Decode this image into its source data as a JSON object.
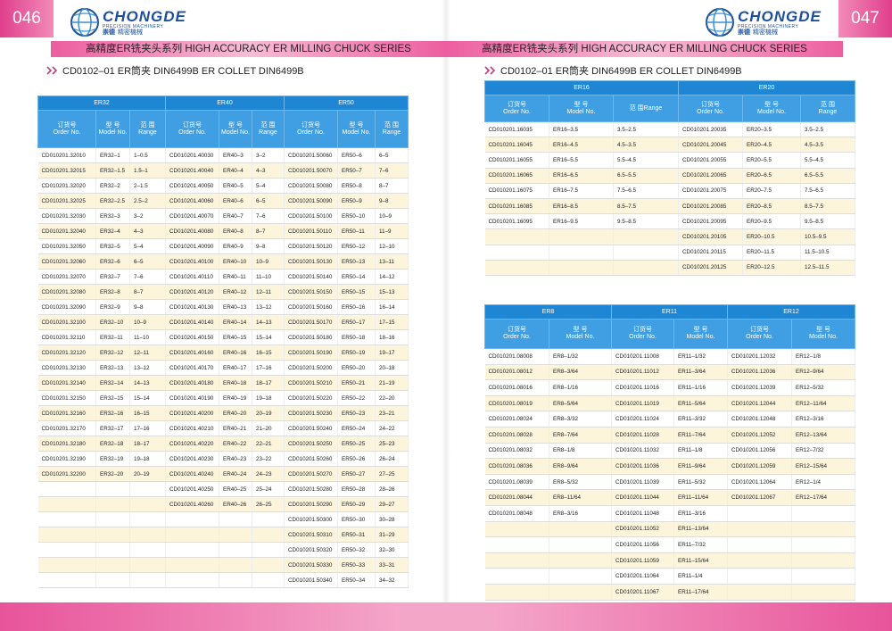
{
  "pages": [
    {
      "number": "046",
      "logo": {
        "brand": "CHONGDE",
        "tagline": "PRECISION MACHINERY",
        "cn": "崇德",
        "cn_sub": "精密機械"
      },
      "title": "高精度ER铣夹头系列  HIGH ACCURACY ER MILLING CHUCK SERIES",
      "subtitle": "CD0102–01 ER筒夹  DIN6499B ER COLLET DIN6499B",
      "tables": [
        {
          "groups": [
            {
              "name": "ER32",
              "headers": [
                [
                  "订货号",
                  "Order No."
                ],
                [
                  "型 号",
                  "Model No."
                ],
                [
                  "范 围",
                  "Range"
                ]
              ],
              "rows": [
                [
                  "CD010201.32010",
                  "ER32–1",
                  "1–0.5"
                ],
                [
                  "CD010201.32015",
                  "ER32–1.5",
                  "1.5–1"
                ],
                [
                  "CD010201.32020",
                  "ER32–2",
                  "2–1.5"
                ],
                [
                  "CD010201.32025",
                  "ER32–2.5",
                  "2.5–2"
                ],
                [
                  "CD010201.32030",
                  "ER32–3",
                  "3–2"
                ],
                [
                  "CD010201.32040",
                  "ER32–4",
                  "4–3"
                ],
                [
                  "CD010201.32050",
                  "ER32–5",
                  "5–4"
                ],
                [
                  "CD010201.32060",
                  "ER32–6",
                  "6–5"
                ],
                [
                  "CD010201.32070",
                  "ER32–7",
                  "7–6"
                ],
                [
                  "CD010201.32080",
                  "ER32–8",
                  "8–7"
                ],
                [
                  "CD010201.32090",
                  "ER32–9",
                  "9–8"
                ],
                [
                  "CD010201.32100",
                  "ER32–10",
                  "10–9"
                ],
                [
                  "CD010201.32110",
                  "ER32–11",
                  "11–10"
                ],
                [
                  "CD010201.32120",
                  "ER32–12",
                  "12–11"
                ],
                [
                  "CD010201.32130",
                  "ER32–13",
                  "13–12"
                ],
                [
                  "CD010201.32140",
                  "ER32–14",
                  "14–13"
                ],
                [
                  "CD010201.32150",
                  "ER32–15",
                  "15–14"
                ],
                [
                  "CD010201.32160",
                  "ER32–16",
                  "16–15"
                ],
                [
                  "CD010201.32170",
                  "ER32–17",
                  "17–16"
                ],
                [
                  "CD010201.32180",
                  "ER32–18",
                  "18–17"
                ],
                [
                  "CD010201.32190",
                  "ER32–19",
                  "19–18"
                ],
                [
                  "CD010201.32200",
                  "ER32–20",
                  "20–19"
                ]
              ]
            },
            {
              "name": "ER40",
              "headers": [
                [
                  "订货号",
                  "Order No."
                ],
                [
                  "型 号",
                  "Model No."
                ],
                [
                  "范 围",
                  "Range"
                ]
              ],
              "rows": [
                [
                  "CD010201.40030",
                  "ER40–3",
                  "3–2"
                ],
                [
                  "CD010201.40040",
                  "ER40–4",
                  "4–3"
                ],
                [
                  "CD010201.40050",
                  "ER40–5",
                  "5–4"
                ],
                [
                  "CD010201.40060",
                  "ER40–6",
                  "6–5"
                ],
                [
                  "CD010201.40070",
                  "ER40–7",
                  "7–6"
                ],
                [
                  "CD010201.40080",
                  "ER40–8",
                  "8–7"
                ],
                [
                  "CD010201.40090",
                  "ER40–9",
                  "9–8"
                ],
                [
                  "CD010201.40100",
                  "ER40–10",
                  "10–9"
                ],
                [
                  "CD010201.40110",
                  "ER40–11",
                  "11–10"
                ],
                [
                  "CD010201.40120",
                  "ER40–12",
                  "12–11"
                ],
                [
                  "CD010201.40130",
                  "ER40–13",
                  "13–12"
                ],
                [
                  "CD010201.40140",
                  "ER40–14",
                  "14–13"
                ],
                [
                  "CD010201.40150",
                  "ER40–15",
                  "15–14"
                ],
                [
                  "CD010201.40160",
                  "ER40–16",
                  "16–15"
                ],
                [
                  "CD010201.40170",
                  "ER40–17",
                  "17–16"
                ],
                [
                  "CD010201.40180",
                  "ER40–18",
                  "18–17"
                ],
                [
                  "CD010201.40190",
                  "ER40–19",
                  "19–18"
                ],
                [
                  "CD010201.40200",
                  "ER40–20",
                  "20–19"
                ],
                [
                  "CD010201.40210",
                  "ER40–21",
                  "21–20"
                ],
                [
                  "CD010201.40220",
                  "ER40–22",
                  "22–21"
                ],
                [
                  "CD010201.40230",
                  "ER40–23",
                  "23–22"
                ],
                [
                  "CD010201.40240",
                  "ER40–24",
                  "24–23"
                ],
                [
                  "CD010201.40250",
                  "ER40–25",
                  "25–24"
                ],
                [
                  "CD010201.40260",
                  "ER40–26",
                  "26–25"
                ]
              ]
            },
            {
              "name": "ER50",
              "headers": [
                [
                  "订货号",
                  "Order No."
                ],
                [
                  "型 号",
                  "Model No."
                ],
                [
                  "范 围",
                  "Range"
                ]
              ],
              "rows": [
                [
                  "CD010201.50060",
                  "ER50–6",
                  "6–5"
                ],
                [
                  "CD010201.50070",
                  "ER50–7",
                  "7–6"
                ],
                [
                  "CD010201.50080",
                  "ER50–8",
                  "8–7"
                ],
                [
                  "CD010201.50090",
                  "ER50–9",
                  "9–8"
                ],
                [
                  "CD010201.50100",
                  "ER50–10",
                  "10–9"
                ],
                [
                  "CD010201.50110",
                  "ER50–11",
                  "11–9"
                ],
                [
                  "CD010201.50120",
                  "ER50–12",
                  "12–10"
                ],
                [
                  "CD010201.50130",
                  "ER50–13",
                  "13–11"
                ],
                [
                  "CD010201.50140",
                  "ER50–14",
                  "14–12"
                ],
                [
                  "CD010201.50150",
                  "ER50–15",
                  "15–13"
                ],
                [
                  "CD010201.50160",
                  "ER50–16",
                  "16–14"
                ],
                [
                  "CD010201.50170",
                  "ER50–17",
                  "17–15"
                ],
                [
                  "CD010201.50180",
                  "ER50–18",
                  "18–16"
                ],
                [
                  "CD010201.50190",
                  "ER50–19",
                  "19–17"
                ],
                [
                  "CD010201.50200",
                  "ER50–20",
                  "20–18"
                ],
                [
                  "CD010201.50210",
                  "ER50–21",
                  "21–19"
                ],
                [
                  "CD010201.50220",
                  "ER50–22",
                  "22–20"
                ],
                [
                  "CD010201.50230",
                  "ER50–23",
                  "23–21"
                ],
                [
                  "CD010201.50240",
                  "ER50–24",
                  "24–22"
                ],
                [
                  "CD010201.50250",
                  "ER50–25",
                  "25–23"
                ],
                [
                  "CD010201.50260",
                  "ER50–26",
                  "26–24"
                ],
                [
                  "CD010201.50270",
                  "ER50–27",
                  "27–25"
                ],
                [
                  "CD010201.50280",
                  "ER50–28",
                  "28–26"
                ],
                [
                  "CD010201.50290",
                  "ER50–29",
                  "29–27"
                ],
                [
                  "CD010201.50300",
                  "ER50–30",
                  "30–28"
                ],
                [
                  "CD010201.50310",
                  "ER50–31",
                  "31–29"
                ],
                [
                  "CD010201.50320",
                  "ER50–32",
                  "32–30"
                ],
                [
                  "CD010201.50330",
                  "ER50–33",
                  "33–31"
                ],
                [
                  "CD010201.50340",
                  "ER50–34",
                  "34–32"
                ]
              ]
            }
          ]
        }
      ]
    },
    {
      "number": "047",
      "logo": {
        "brand": "CHONGDE",
        "tagline": "PRECISION MACHINERY",
        "cn": "崇德",
        "cn_sub": "精密機械"
      },
      "title": "高精度ER铣夹头系列  HIGH ACCURACY ER MILLING CHUCK SERIES",
      "subtitle": "CD0102–01 ER筒夹  DIN6499B ER COLLET DIN6499B",
      "tables": [
        {
          "groups": [
            {
              "name": "ER16",
              "headers": [
                [
                  "订货号",
                  "Order No."
                ],
                [
                  "型 号",
                  "Model No."
                ],
                [
                  "范 围Range"
                ]
              ],
              "rows": [
                [
                  "CD010201.16035",
                  "ER16–3.5",
                  "3.5–2.5"
                ],
                [
                  "CD010201.16045",
                  "ER16–4.5",
                  "4.5–3.5"
                ],
                [
                  "CD010201.16055",
                  "ER16–5.5",
                  "5.5–4.5"
                ],
                [
                  "CD010201.16065",
                  "ER16–6.5",
                  "6.5–5.5"
                ],
                [
                  "CD010201.16075",
                  "ER16–7.5",
                  "7.5–6.5"
                ],
                [
                  "CD010201.16085",
                  "ER16–8.5",
                  "8.5–7.5"
                ],
                [
                  "CD010201.16095",
                  "ER16–9.5",
                  "9.5–8.5"
                ]
              ]
            },
            {
              "name": "ER20",
              "headers": [
                [
                  "订货号",
                  "Order No."
                ],
                [
                  "型 号",
                  "Model No."
                ],
                [
                  "范 围",
                  "Range"
                ]
              ],
              "rows": [
                [
                  "CD010201.20035",
                  "ER20–3.5",
                  "3.5–2.5"
                ],
                [
                  "CD010201.20045",
                  "ER20–4.5",
                  "4.5–3.5"
                ],
                [
                  "CD010201.20055",
                  "ER20–5.5",
                  "5.5–4.5"
                ],
                [
                  "CD010201.20065",
                  "ER20–6.5",
                  "6.5–5.5"
                ],
                [
                  "CD010201.20075",
                  "ER20–7.5",
                  "7.5–6.5"
                ],
                [
                  "CD010201.20085",
                  "ER20–8.5",
                  "8.5–7.5"
                ],
                [
                  "CD010201.20095",
                  "ER20–9.5",
                  "9.5–8.5"
                ],
                [
                  "CD010201.20105",
                  "ER20–10.5",
                  "10.5–9.5"
                ],
                [
                  "CD010201.20115",
                  "ER20–11.5",
                  "11.5–10.5"
                ],
                [
                  "CD010201.20125",
                  "ER20–12.5",
                  "12.5–11.5"
                ]
              ]
            }
          ]
        },
        {
          "groups": [
            {
              "name": "ER8",
              "headers": [
                [
                  "订货号",
                  "Order No."
                ],
                [
                  "型 号",
                  "Model  No."
                ]
              ],
              "rows": [
                [
                  "CD010201.08008",
                  "ER8–1/32"
                ],
                [
                  "CD010201.08012",
                  "ER8–3/64"
                ],
                [
                  "CD010201.08016",
                  "ER8–1/16"
                ],
                [
                  "CD010201.08019",
                  "ER8–5/64"
                ],
                [
                  "CD010201.08024",
                  "ER8–3/32"
                ],
                [
                  "CD010201.08028",
                  "ER8–7/64"
                ],
                [
                  "CD010201.08032",
                  "ER8–1/8"
                ],
                [
                  "CD010201.08036",
                  "ER8–9/64"
                ],
                [
                  "CD010201.08039",
                  "ER8–5/32"
                ],
                [
                  "CD010201.08044",
                  "ER8–11/64"
                ],
                [
                  "CD010201.08048",
                  "ER8–3/16"
                ]
              ]
            },
            {
              "name": "ER11",
              "headers": [
                [
                  "订货号",
                  "Order No."
                ],
                [
                  "型 号",
                  "Model  No."
                ]
              ],
              "rows": [
                [
                  "CD010201.11008",
                  "ER11–1/32"
                ],
                [
                  "CD010201.11012",
                  "ER11–3/64"
                ],
                [
                  "CD010201.11016",
                  "ER11–1/16"
                ],
                [
                  "CD010201.11019",
                  "ER11–5/64"
                ],
                [
                  "CD010201.11024",
                  "ER11–3/32"
                ],
                [
                  "CD010201.11028",
                  "ER11–7/64"
                ],
                [
                  "CD010201.11032",
                  "ER11–1/8"
                ],
                [
                  "CD010201.11036",
                  "ER11–9/64"
                ],
                [
                  "CD010201.11039",
                  "ER11–5/32"
                ],
                [
                  "CD010201.11044",
                  "ER11–11/64"
                ],
                [
                  "CD010201.11048",
                  "ER11–3/16"
                ],
                [
                  "CD010201.11052",
                  "ER11–13/64"
                ],
                [
                  "CD010201.11056",
                  "ER11–7/32"
                ],
                [
                  "CD010201.11059",
                  "ER11–15/64"
                ],
                [
                  "CD010201.11064",
                  "ER11–1/4"
                ],
                [
                  "CD010201.11067",
                  "ER11–17/64"
                ]
              ]
            },
            {
              "name": "ER12",
              "headers": [
                [
                  "订货号",
                  "Order No."
                ],
                [
                  "型 号",
                  "Model  No."
                ]
              ],
              "rows": [
                [
                  "CD010201.12032",
                  "ER12–1/8"
                ],
                [
                  "CD010201.12036",
                  "ER12–9/64"
                ],
                [
                  "CD010201.12039",
                  "ER12–5/32"
                ],
                [
                  "CD010201.12044",
                  "ER12–11/64"
                ],
                [
                  "CD010201.12048",
                  "ER12–3/16"
                ],
                [
                  "CD010201.12052",
                  "ER12–13/64"
                ],
                [
                  "CD010201.12056",
                  "ER12–7/32"
                ],
                [
                  "CD010201.12059",
                  "ER12–15/64"
                ],
                [
                  "CD010201.12064",
                  "ER12–1/4"
                ],
                [
                  "CD010201.12067",
                  "ER12–17/64"
                ]
              ]
            }
          ]
        }
      ]
    }
  ]
}
